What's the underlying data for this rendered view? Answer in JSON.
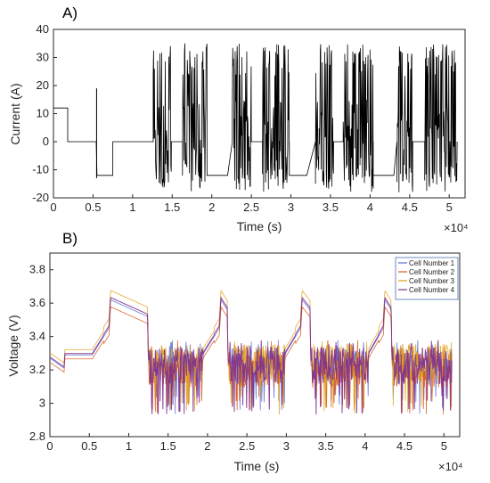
{
  "panel_a_label": "A)",
  "panel_b_label": "B)",
  "chart_data": [
    {
      "type": "line",
      "panel": "A)",
      "xlabel": "Time (s)",
      "ylabel": "Current (A)",
      "xlim": [
        0,
        52000
      ],
      "ylim": [
        -20,
        40
      ],
      "x_exponent_label": "×10⁴",
      "x_ticks": [
        0,
        5000,
        10000,
        15000,
        20000,
        25000,
        30000,
        35000,
        40000,
        45000,
        50000
      ],
      "x_tick_labels": [
        "0",
        "0.5",
        "1",
        "1.5",
        "2",
        "2.5",
        "3",
        "3.5",
        "4",
        "4.5",
        "5"
      ],
      "y_ticks": [
        -20,
        -10,
        0,
        10,
        20,
        30,
        40
      ],
      "y_tick_labels": [
        "-20",
        "-10",
        "0",
        "10",
        "20",
        "30",
        "40"
      ],
      "grid": false,
      "series_color": "#000000",
      "segments": [
        {
          "kind": "const",
          "x0": 0,
          "x1": 1800,
          "y": 12
        },
        {
          "kind": "const",
          "x0": 1800,
          "x1": 5400,
          "y": 0
        },
        {
          "kind": "const",
          "x0": 5500,
          "x1": 7500,
          "y": -12
        },
        {
          "kind": "const",
          "x0": 7500,
          "x1": 12500,
          "y": 0
        },
        {
          "kind": "noise",
          "x0": 12600,
          "x1": 14900,
          "min": -18,
          "max": 35
        },
        {
          "kind": "noise",
          "x0": 16300,
          "x1": 19400,
          "min": -18,
          "max": 35
        },
        {
          "kind": "const",
          "x0": 19400,
          "x1": 22000,
          "y": -12
        },
        {
          "kind": "noise",
          "x0": 22600,
          "x1": 25000,
          "min": -18,
          "max": 35
        },
        {
          "kind": "noise",
          "x0": 26400,
          "x1": 29800,
          "min": -18,
          "max": 35
        },
        {
          "kind": "const",
          "x0": 29800,
          "x1": 32000,
          "y": -12
        },
        {
          "kind": "noise",
          "x0": 33100,
          "x1": 35400,
          "min": -18,
          "max": 35
        },
        {
          "kind": "noise",
          "x0": 36600,
          "x1": 40400,
          "min": -18,
          "max": 35
        },
        {
          "kind": "const",
          "x0": 40400,
          "x1": 43000,
          "y": -12
        },
        {
          "kind": "noise",
          "x0": 43400,
          "x1": 45400,
          "min": -18,
          "max": 35
        },
        {
          "kind": "noise",
          "x0": 46900,
          "x1": 51000,
          "min": -18,
          "max": 35
        }
      ]
    },
    {
      "type": "line",
      "panel": "B)",
      "xlabel": "Time (s)",
      "ylabel": "Voltage (V)",
      "xlim": [
        0,
        52000
      ],
      "ylim": [
        2.8,
        3.9
      ],
      "x_exponent_label": "×10⁴",
      "x_ticks": [
        0,
        5000,
        10000,
        15000,
        20000,
        25000,
        30000,
        35000,
        40000,
        45000,
        50000
      ],
      "x_tick_labels": [
        "0",
        "0.5",
        "1",
        "1.5",
        "2",
        "2.5",
        "3",
        "3.5",
        "4",
        "4.5",
        "5"
      ],
      "y_ticks": [
        2.8,
        3.0,
        3.2,
        3.4,
        3.6,
        3.8
      ],
      "y_tick_labels": [
        "2.8",
        "3",
        "3.2",
        "3.4",
        "3.6",
        "3.8"
      ],
      "grid": false,
      "legend": "top-right",
      "series": [
        {
          "name": "Cell Number 1",
          "color": "#5b6fd6",
          "offset": 0.0
        },
        {
          "name": "Cell Number 2",
          "color": "#d95b1a",
          "offset": -0.03
        },
        {
          "name": "Cell Number 3",
          "color": "#e0a21d",
          "offset": 0.04
        },
        {
          "name": "Cell Number 4",
          "color": "#7e2f8e",
          "offset": 0.01
        }
      ],
      "base_profile": [
        [
          0,
          3.27
        ],
        [
          1800,
          3.21
        ],
        [
          1900,
          3.29
        ],
        [
          5400,
          3.29
        ],
        [
          5500,
          3.3
        ],
        [
          7500,
          3.45
        ],
        [
          7700,
          3.62
        ],
        [
          12400,
          3.52
        ],
        [
          12500,
          3.25
        ],
        [
          19400,
          3.27
        ],
        [
          19500,
          3.3
        ],
        [
          21500,
          3.45
        ],
        [
          21700,
          3.62
        ],
        [
          22500,
          3.56
        ],
        [
          22600,
          3.25
        ],
        [
          29800,
          3.27
        ],
        [
          29900,
          3.3
        ],
        [
          31800,
          3.45
        ],
        [
          32000,
          3.62
        ],
        [
          33000,
          3.56
        ],
        [
          33100,
          3.25
        ],
        [
          40400,
          3.27
        ],
        [
          40500,
          3.3
        ],
        [
          42300,
          3.45
        ],
        [
          42500,
          3.62
        ],
        [
          43300,
          3.56
        ],
        [
          43400,
          3.25
        ],
        [
          51000,
          3.22
        ]
      ],
      "noisy_ranges": [
        [
          12600,
          19400
        ],
        [
          22700,
          29800
        ],
        [
          33200,
          40400
        ],
        [
          43500,
          51000
        ]
      ],
      "noise_min": 2.93,
      "noise_max": 3.38
    }
  ]
}
